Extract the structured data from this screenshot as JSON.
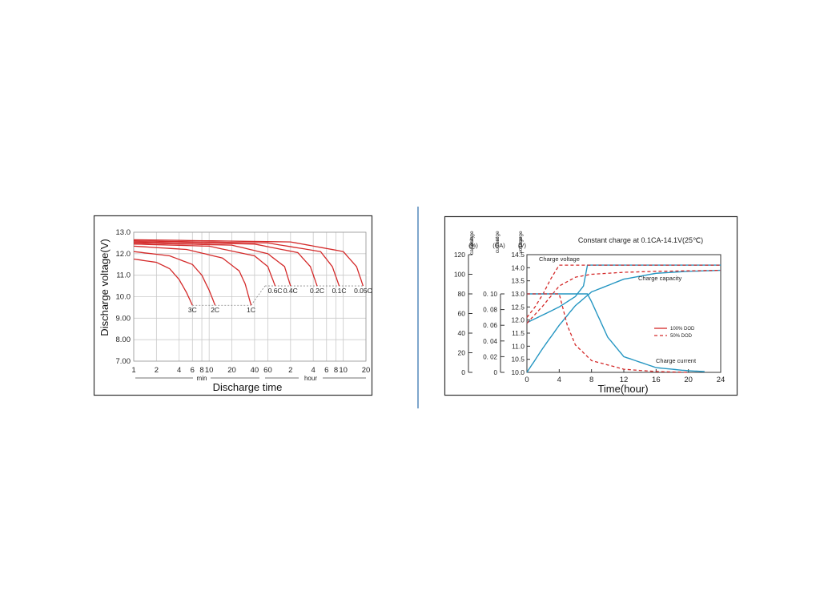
{
  "chart_data": [
    {
      "type": "line",
      "xlabel": "Discharge time",
      "ylabel": "Discharge voltage(V)",
      "ylim": [
        7.0,
        13.0
      ],
      "y_ticks": [
        "13.0",
        "12.0",
        "11.0",
        "10.0",
        "9.00",
        "8.00",
        "7.00"
      ],
      "x_scale": "log",
      "x_ticks": [
        "1",
        "2",
        "4",
        "6",
        "8",
        "10",
        "20",
        "40",
        "60",
        "2",
        "4",
        "6",
        "8",
        "10",
        "20"
      ],
      "x_units": [
        "min",
        "hour"
      ],
      "grid": true,
      "series": [
        {
          "name": "3C",
          "values": [
            [
              1,
              11.75
            ],
            [
              2,
              11.6
            ],
            [
              3,
              11.3
            ],
            [
              4,
              10.8
            ],
            [
              5,
              10.2
            ],
            [
              6,
              9.6
            ]
          ]
        },
        {
          "name": "2C",
          "values": [
            [
              1,
              12.1
            ],
            [
              3,
              11.9
            ],
            [
              6,
              11.5
            ],
            [
              8,
              11.0
            ],
            [
              10,
              10.3
            ],
            [
              12,
              9.6
            ]
          ]
        },
        {
          "name": "1C",
          "values": [
            [
              1,
              12.35
            ],
            [
              5,
              12.2
            ],
            [
              15,
              11.8
            ],
            [
              25,
              11.2
            ],
            [
              30,
              10.6
            ],
            [
              36,
              9.6
            ]
          ]
        },
        {
          "name": "0.6C",
          "values": [
            [
              1,
              12.45
            ],
            [
              10,
              12.35
            ],
            [
              40,
              11.9
            ],
            [
              60,
              11.4
            ],
            [
              75,
              10.5
            ]
          ]
        },
        {
          "name": "0.4C",
          "values": [
            [
              1,
              12.5
            ],
            [
              20,
              12.4
            ],
            [
              60,
              12.0
            ],
            [
              100,
              11.4
            ],
            [
              120,
              10.5
            ]
          ]
        },
        {
          "name": "0.2C",
          "values": [
            [
              1,
              12.55
            ],
            [
              40,
              12.45
            ],
            [
              150,
              12.05
            ],
            [
              220,
              11.4
            ],
            [
              270,
              10.5
            ]
          ]
        },
        {
          "name": "0.1C",
          "values": [
            [
              1,
              12.6
            ],
            [
              60,
              12.5
            ],
            [
              300,
              12.1
            ],
            [
              430,
              11.4
            ],
            [
              530,
              10.5
            ]
          ]
        },
        {
          "name": "0.05C",
          "values": [
            [
              1,
              12.65
            ],
            [
              120,
              12.55
            ],
            [
              600,
              12.1
            ],
            [
              900,
              11.4
            ],
            [
              1100,
              10.5
            ]
          ]
        }
      ]
    },
    {
      "type": "line",
      "title": "Constant charge at 0.1CA-14.1V(25℃)",
      "xlabel": "Time(hour)",
      "xlim": [
        0,
        24
      ],
      "x_ticks": [
        "0",
        "4",
        "8",
        "12",
        "16",
        "20",
        "24"
      ],
      "y_axes": [
        {
          "label": [
            "Charge",
            "capacity",
            "(%)"
          ],
          "ticks": [
            "120",
            "100",
            "80",
            "60",
            "40",
            "20",
            "0"
          ]
        },
        {
          "label": [
            "Charge",
            "current",
            "(CA)"
          ],
          "ticks": [
            "0. 10",
            "0. 08",
            "0. 06",
            "0. 04",
            "0. 02",
            "0"
          ]
        },
        {
          "label": [
            "Charge",
            "voltage",
            "(V)"
          ],
          "ticks": [
            "14.5",
            "14.0",
            "13.5",
            "13.0",
            "12.5",
            "12.0",
            "11.5",
            "11.0",
            "10.5",
            "10.0"
          ]
        }
      ],
      "legend": [
        {
          "label": "100% DOD",
          "style": "solid",
          "color": "#d42a2a"
        },
        {
          "label": "50% DOD",
          "style": "dashed",
          "color": "#d42a2a"
        }
      ],
      "legend_position": "right-middle",
      "annotations": [
        "Charge voltage",
        "Charge capacity",
        "Charge current"
      ],
      "series": [
        {
          "name": "Charge voltage",
          "dod": "100%",
          "values": [
            [
              0,
              11.9
            ],
            [
              2,
              12.2
            ],
            [
              4,
              12.5
            ],
            [
              6,
              12.9
            ],
            [
              7,
              13.3
            ],
            [
              7.5,
              14.1
            ],
            [
              24,
              14.1
            ]
          ]
        },
        {
          "name": "Charge voltage",
          "dod": "50%",
          "values": [
            [
              0,
              12.1
            ],
            [
              1,
              12.5
            ],
            [
              2,
              13.0
            ],
            [
              3,
              13.6
            ],
            [
              4,
              14.1
            ],
            [
              24,
              14.1
            ]
          ]
        },
        {
          "name": "Charge capacity",
          "dod": "100%",
          "values": [
            [
              0,
              0
            ],
            [
              2,
              25
            ],
            [
              4,
              48
            ],
            [
              6,
              68
            ],
            [
              8,
              82
            ],
            [
              12,
              95
            ],
            [
              16,
              101
            ],
            [
              20,
              103
            ],
            [
              24,
              104
            ]
          ]
        },
        {
          "name": "Charge capacity",
          "dod": "50%",
          "values": [
            [
              0,
              50
            ],
            [
              2,
              68
            ],
            [
              4,
              88
            ],
            [
              6,
              97
            ],
            [
              8,
              100
            ],
            [
              12,
              102
            ],
            [
              16,
              103
            ],
            [
              24,
              104
            ]
          ]
        },
        {
          "name": "Charge current",
          "dod": "100%",
          "values": [
            [
              0,
              0.1
            ],
            [
              7.5,
              0.1
            ],
            [
              8,
              0.09
            ],
            [
              10,
              0.045
            ],
            [
              12,
              0.02
            ],
            [
              16,
              0.006
            ],
            [
              20,
              0.002
            ],
            [
              22,
              0.001
            ]
          ]
        },
        {
          "name": "Charge current",
          "dod": "50%",
          "values": [
            [
              0,
              0.1
            ],
            [
              4,
              0.1
            ],
            [
              5,
              0.06
            ],
            [
              6,
              0.035
            ],
            [
              8,
              0.015
            ],
            [
              12,
              0.004
            ],
            [
              16,
              0.001
            ],
            [
              20,
              0.0
            ]
          ]
        }
      ]
    }
  ],
  "colors": {
    "red": "#d42a2a",
    "blue": "#2596c2",
    "divider": "#7ea6cc"
  }
}
